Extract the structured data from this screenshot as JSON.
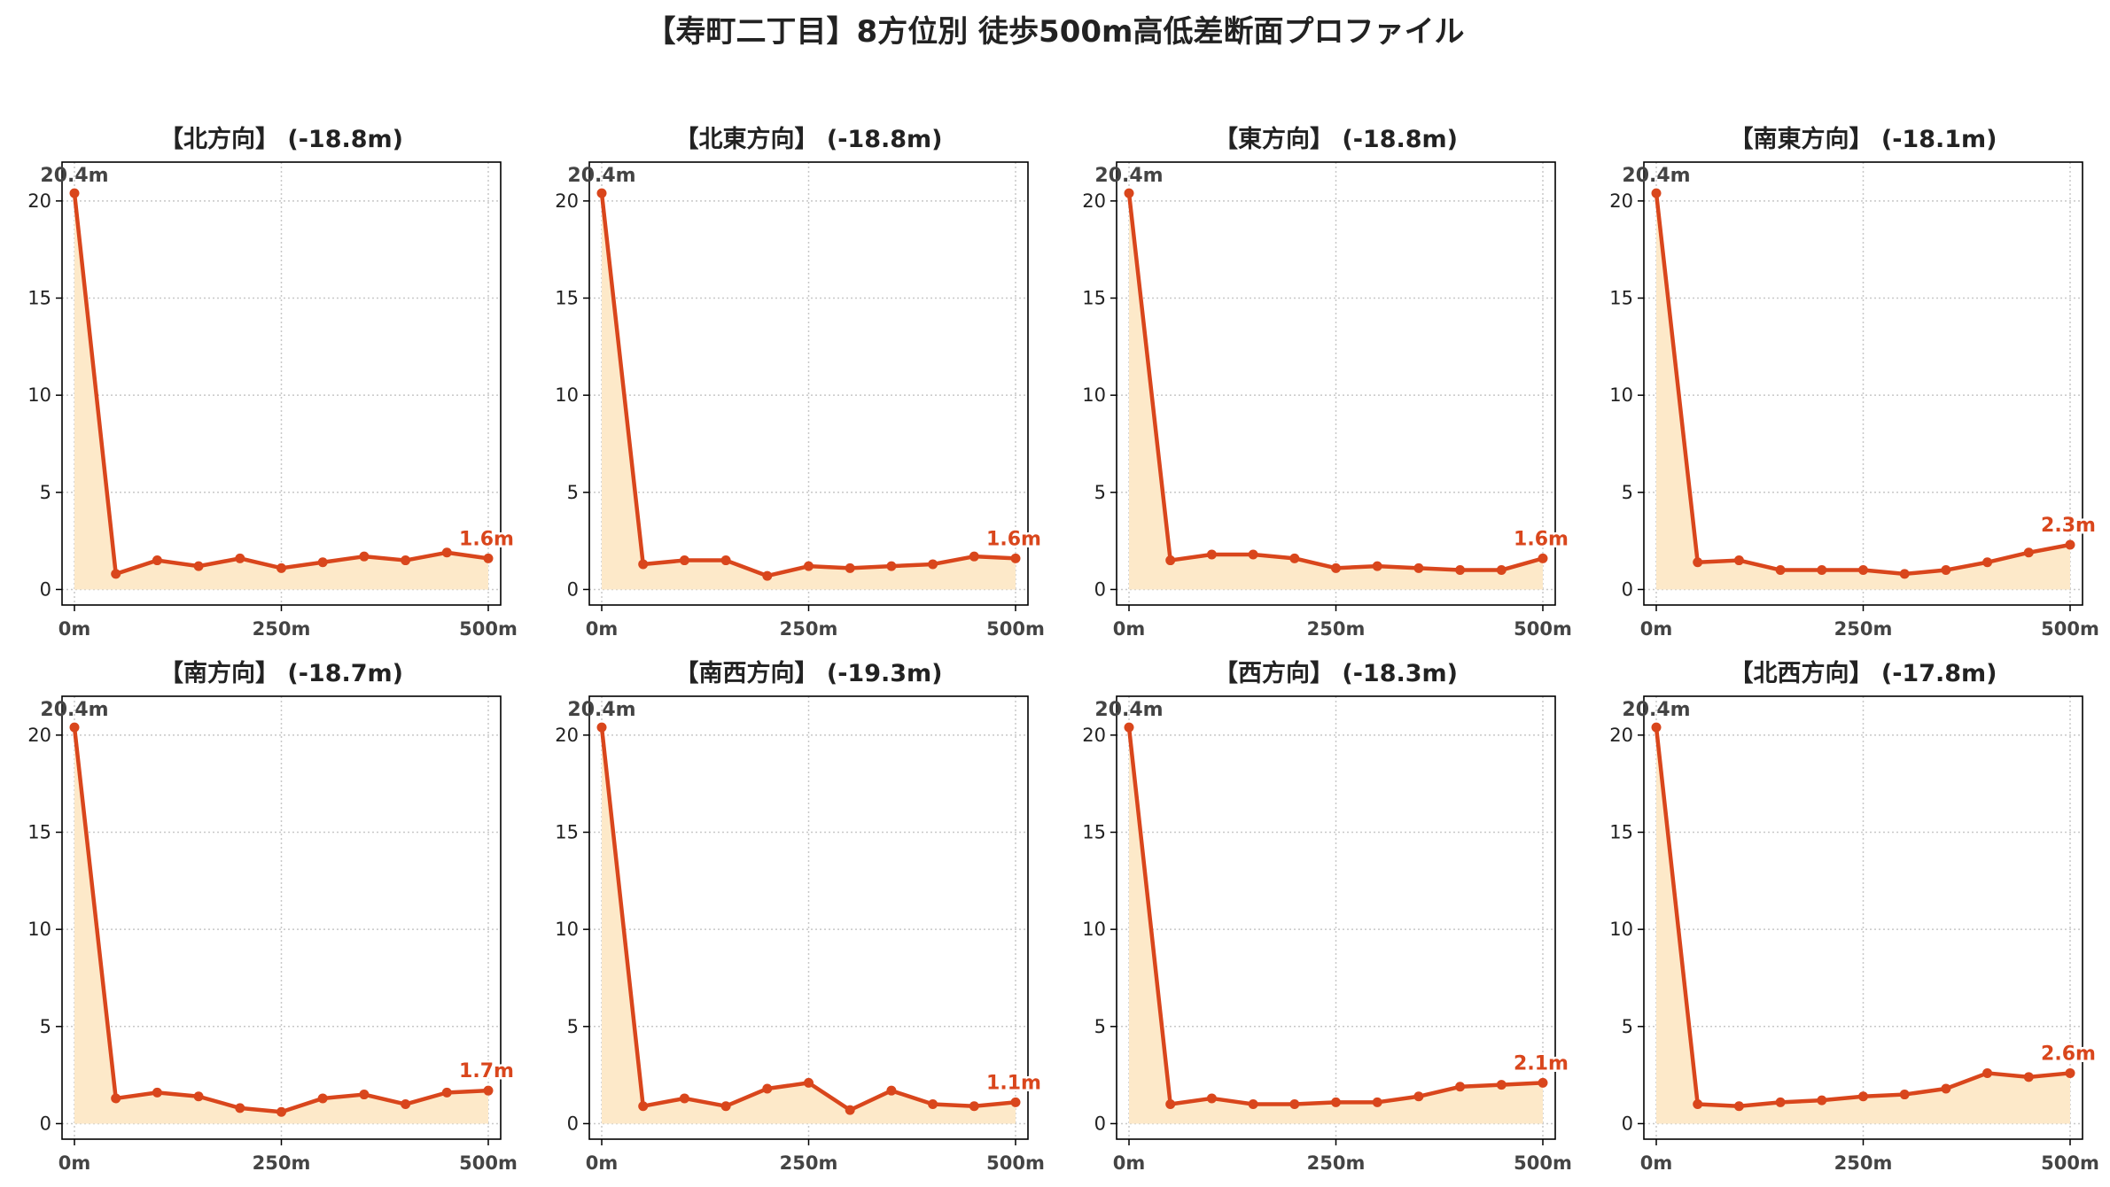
{
  "figure": {
    "title": "【寿町二丁目】8方位別 徒歩500m高低差断面プロファイル"
  },
  "colors": {
    "line": "#d9461c",
    "fill": "#fde9c9",
    "text": "#222222",
    "grid": "#c8c8c8",
    "start_label": "#444444",
    "end_label": "#d9461c"
  },
  "chart_data": [
    {
      "type": "area",
      "title": "【北方向】 (-18.8m)",
      "x": [
        0,
        50,
        100,
        150,
        200,
        250,
        300,
        350,
        400,
        450,
        500
      ],
      "values": [
        20.4,
        0.8,
        1.5,
        1.2,
        1.6,
        1.1,
        1.4,
        1.7,
        1.5,
        1.9,
        1.6
      ],
      "start_label": "20.4m",
      "end_label": "1.6m",
      "xticks": [
        "0m",
        "250m",
        "500m"
      ],
      "yticks": [
        "0",
        "5",
        "10",
        "15",
        "20"
      ],
      "xlim": [
        -15,
        515
      ],
      "ylim": [
        -0.8,
        22
      ],
      "grid": true
    },
    {
      "type": "area",
      "title": "【北東方向】 (-18.8m)",
      "x": [
        0,
        50,
        100,
        150,
        200,
        250,
        300,
        350,
        400,
        450,
        500
      ],
      "values": [
        20.4,
        1.3,
        1.5,
        1.5,
        0.7,
        1.2,
        1.1,
        1.2,
        1.3,
        1.7,
        1.6
      ],
      "start_label": "20.4m",
      "end_label": "1.6m",
      "xticks": [
        "0m",
        "250m",
        "500m"
      ],
      "yticks": [
        "0",
        "5",
        "10",
        "15",
        "20"
      ],
      "xlim": [
        -15,
        515
      ],
      "ylim": [
        -0.8,
        22
      ],
      "grid": true
    },
    {
      "type": "area",
      "title": "【東方向】 (-18.8m)",
      "x": [
        0,
        50,
        100,
        150,
        200,
        250,
        300,
        350,
        400,
        450,
        500
      ],
      "values": [
        20.4,
        1.5,
        1.8,
        1.8,
        1.6,
        1.1,
        1.2,
        1.1,
        1.0,
        1.0,
        1.6
      ],
      "start_label": "20.4m",
      "end_label": "1.6m",
      "xticks": [
        "0m",
        "250m",
        "500m"
      ],
      "yticks": [
        "0",
        "5",
        "10",
        "15",
        "20"
      ],
      "xlim": [
        -15,
        515
      ],
      "ylim": [
        -0.8,
        22
      ],
      "grid": true
    },
    {
      "type": "area",
      "title": "【南東方向】 (-18.1m)",
      "x": [
        0,
        50,
        100,
        150,
        200,
        250,
        300,
        350,
        400,
        450,
        500
      ],
      "values": [
        20.4,
        1.4,
        1.5,
        1.0,
        1.0,
        1.0,
        0.8,
        1.0,
        1.4,
        1.9,
        2.3
      ],
      "start_label": "20.4m",
      "end_label": "2.3m",
      "xticks": [
        "0m",
        "250m",
        "500m"
      ],
      "yticks": [
        "0",
        "5",
        "10",
        "15",
        "20"
      ],
      "xlim": [
        -15,
        515
      ],
      "ylim": [
        -0.8,
        22
      ],
      "grid": true
    },
    {
      "type": "area",
      "title": "【南方向】 (-18.7m)",
      "x": [
        0,
        50,
        100,
        150,
        200,
        250,
        300,
        350,
        400,
        450,
        500
      ],
      "values": [
        20.4,
        1.3,
        1.6,
        1.4,
        0.8,
        0.6,
        1.3,
        1.5,
        1.0,
        1.6,
        1.7
      ],
      "start_label": "20.4m",
      "end_label": "1.7m",
      "xticks": [
        "0m",
        "250m",
        "500m"
      ],
      "yticks": [
        "0",
        "5",
        "10",
        "15",
        "20"
      ],
      "xlim": [
        -15,
        515
      ],
      "ylim": [
        -0.8,
        22
      ],
      "grid": true
    },
    {
      "type": "area",
      "title": "【南西方向】 (-19.3m)",
      "x": [
        0,
        50,
        100,
        150,
        200,
        250,
        300,
        350,
        400,
        450,
        500
      ],
      "values": [
        20.4,
        0.9,
        1.3,
        0.9,
        1.8,
        2.1,
        0.7,
        1.7,
        1.0,
        0.9,
        1.1
      ],
      "start_label": "20.4m",
      "end_label": "1.1m",
      "xticks": [
        "0m",
        "250m",
        "500m"
      ],
      "yticks": [
        "0",
        "5",
        "10",
        "15",
        "20"
      ],
      "xlim": [
        -15,
        515
      ],
      "ylim": [
        -0.8,
        22
      ],
      "grid": true
    },
    {
      "type": "area",
      "title": "【西方向】 (-18.3m)",
      "x": [
        0,
        50,
        100,
        150,
        200,
        250,
        300,
        350,
        400,
        450,
        500
      ],
      "values": [
        20.4,
        1.0,
        1.3,
        1.0,
        1.0,
        1.1,
        1.1,
        1.4,
        1.9,
        2.0,
        2.1
      ],
      "start_label": "20.4m",
      "end_label": "2.1m",
      "xticks": [
        "0m",
        "250m",
        "500m"
      ],
      "yticks": [
        "0",
        "5",
        "10",
        "15",
        "20"
      ],
      "xlim": [
        -15,
        515
      ],
      "ylim": [
        -0.8,
        22
      ],
      "grid": true
    },
    {
      "type": "area",
      "title": "【北西方向】 (-17.8m)",
      "x": [
        0,
        50,
        100,
        150,
        200,
        250,
        300,
        350,
        400,
        450,
        500
      ],
      "values": [
        20.4,
        1.0,
        0.9,
        1.1,
        1.2,
        1.4,
        1.5,
        1.8,
        2.6,
        2.4,
        2.6
      ],
      "start_label": "20.4m",
      "end_label": "2.6m",
      "xticks": [
        "0m",
        "250m",
        "500m"
      ],
      "yticks": [
        "0",
        "5",
        "10",
        "15",
        "20"
      ],
      "xlim": [
        -15,
        515
      ],
      "ylim": [
        -0.8,
        22
      ],
      "grid": true
    }
  ]
}
